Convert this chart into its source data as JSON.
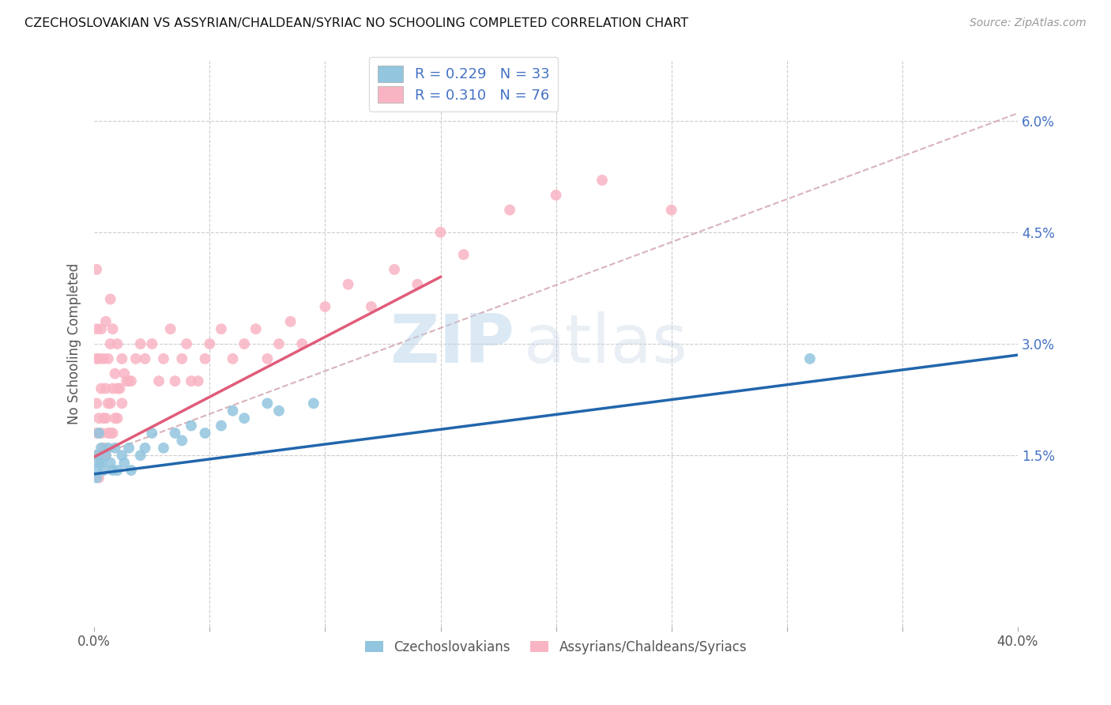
{
  "title": "CZECHOSLOVAKIAN VS ASSYRIAN/CHALDEAN/SYRIAC NO SCHOOLING COMPLETED CORRELATION CHART",
  "source": "Source: ZipAtlas.com",
  "ylabel": "No Schooling Completed",
  "yticks_labels": [
    "1.5%",
    "3.0%",
    "4.5%",
    "6.0%"
  ],
  "ytick_vals": [
    0.015,
    0.03,
    0.045,
    0.06
  ],
  "xlim": [
    0.0,
    0.4
  ],
  "ylim": [
    -0.008,
    0.068
  ],
  "legend_r1": "R = 0.229",
  "legend_n1": "N = 33",
  "legend_r2": "R = 0.310",
  "legend_n2": "N = 76",
  "color_czech": "#92C5DE",
  "color_assyrian": "#F9B4C3",
  "color_trendline_czech": "#2166AC",
  "color_trendline_assyrian": "#E05C7A",
  "color_trendline_dashed": "#D0A0A8",
  "watermark_zip": "ZIP",
  "watermark_atlas": "atlas",
  "legend_label1": "Czechoslovakians",
  "legend_label2": "Assyrians/Chaldeans/Syriacs",
  "czech_x": [
    0.001,
    0.001,
    0.001,
    0.002,
    0.002,
    0.003,
    0.003,
    0.004,
    0.005,
    0.006,
    0.007,
    0.008,
    0.009,
    0.01,
    0.012,
    0.013,
    0.015,
    0.016,
    0.02,
    0.022,
    0.025,
    0.03,
    0.035,
    0.038,
    0.042,
    0.048,
    0.055,
    0.06,
    0.065,
    0.075,
    0.08,
    0.095,
    0.31
  ],
  "czech_y": [
    0.013,
    0.012,
    0.015,
    0.014,
    0.018,
    0.014,
    0.016,
    0.013,
    0.015,
    0.016,
    0.014,
    0.013,
    0.016,
    0.013,
    0.015,
    0.014,
    0.016,
    0.013,
    0.015,
    0.016,
    0.018,
    0.016,
    0.018,
    0.017,
    0.019,
    0.018,
    0.019,
    0.021,
    0.02,
    0.022,
    0.021,
    0.022,
    0.028
  ],
  "assyrian_x": [
    0.001,
    0.001,
    0.001,
    0.001,
    0.001,
    0.001,
    0.002,
    0.002,
    0.002,
    0.002,
    0.003,
    0.003,
    0.003,
    0.003,
    0.004,
    0.004,
    0.004,
    0.005,
    0.005,
    0.005,
    0.005,
    0.006,
    0.006,
    0.006,
    0.007,
    0.007,
    0.007,
    0.007,
    0.008,
    0.008,
    0.008,
    0.009,
    0.009,
    0.01,
    0.01,
    0.01,
    0.011,
    0.012,
    0.012,
    0.013,
    0.014,
    0.015,
    0.016,
    0.018,
    0.02,
    0.022,
    0.025,
    0.028,
    0.03,
    0.033,
    0.035,
    0.038,
    0.04,
    0.042,
    0.045,
    0.048,
    0.05,
    0.055,
    0.06,
    0.065,
    0.07,
    0.075,
    0.08,
    0.085,
    0.09,
    0.1,
    0.11,
    0.12,
    0.13,
    0.14,
    0.15,
    0.16,
    0.18,
    0.2,
    0.22,
    0.25
  ],
  "assyrian_y": [
    0.015,
    0.018,
    0.022,
    0.028,
    0.032,
    0.04,
    0.012,
    0.015,
    0.02,
    0.028,
    0.015,
    0.018,
    0.024,
    0.032,
    0.016,
    0.02,
    0.028,
    0.015,
    0.02,
    0.024,
    0.033,
    0.018,
    0.022,
    0.028,
    0.018,
    0.022,
    0.03,
    0.036,
    0.018,
    0.024,
    0.032,
    0.02,
    0.026,
    0.02,
    0.024,
    0.03,
    0.024,
    0.022,
    0.028,
    0.026,
    0.025,
    0.025,
    0.025,
    0.028,
    0.03,
    0.028,
    0.03,
    0.025,
    0.028,
    0.032,
    0.025,
    0.028,
    0.03,
    0.025,
    0.025,
    0.028,
    0.03,
    0.032,
    0.028,
    0.03,
    0.032,
    0.028,
    0.03,
    0.033,
    0.03,
    0.035,
    0.038,
    0.035,
    0.04,
    0.038,
    0.045,
    0.042,
    0.048,
    0.05,
    0.052,
    0.048
  ],
  "trendline_czech_x0": 0.0,
  "trendline_czech_y0": 0.0125,
  "trendline_czech_x1": 0.4,
  "trendline_czech_y1": 0.0285,
  "trendline_assyrian_x0": 0.0,
  "trendline_assyrian_y0": 0.0148,
  "trendline_assyrian_x1": 0.15,
  "trendline_assyrian_y1": 0.039,
  "trendline_dashed_x0": 0.0,
  "trendline_dashed_y0": 0.0148,
  "trendline_dashed_x1": 0.4,
  "trendline_dashed_y1": 0.061
}
